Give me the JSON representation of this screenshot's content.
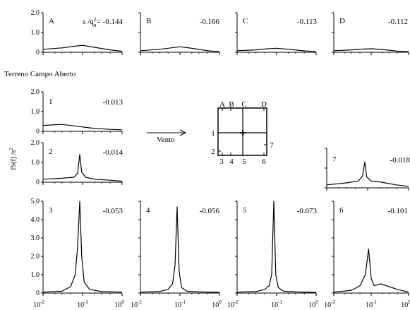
{
  "figure": {
    "section_label": "Terreno Campo Aberto",
    "wind_label": "Vento",
    "ylabel": "fS(f) /s",
    "ylabel_sup": "2",
    "coef_prefix": "s /q",
    "coef_sup": "2",
    "coef_sub": "H",
    "coef_eq": "= ",
    "xtick_base": "10",
    "xticks": [
      "-2",
      "-1",
      "0"
    ],
    "key": {
      "top_labels": [
        "A",
        "B",
        "C",
        "D"
      ],
      "bottom_labels": [
        "3",
        "4",
        "5",
        "6"
      ],
      "left_labels": [
        "1",
        "2"
      ],
      "right_labels": [
        "7"
      ]
    }
  },
  "chart_data": [
    {
      "type": "line",
      "label": "A",
      "value": "-0.144",
      "ylim": [
        0,
        2.0
      ],
      "yticks": [
        "0",
        "1.0",
        "2.0"
      ],
      "x": [
        0.01,
        0.03,
        0.06,
        0.1,
        0.2,
        0.5,
        1.0
      ],
      "y": [
        0.15,
        0.22,
        0.3,
        0.35,
        0.25,
        0.12,
        0.05
      ]
    },
    {
      "type": "line",
      "label": "B",
      "value": "-0.166",
      "ylim": [
        0,
        2.0
      ],
      "x": [
        0.01,
        0.03,
        0.06,
        0.1,
        0.2,
        0.5,
        1.0
      ],
      "y": [
        0.08,
        0.15,
        0.22,
        0.28,
        0.2,
        0.08,
        0.03
      ]
    },
    {
      "type": "line",
      "label": "C",
      "value": "-0.113",
      "ylim": [
        0,
        2.0
      ],
      "x": [
        0.01,
        0.03,
        0.06,
        0.1,
        0.2,
        0.5,
        1.0
      ],
      "y": [
        0.08,
        0.12,
        0.18,
        0.2,
        0.15,
        0.07,
        0.03
      ]
    },
    {
      "type": "line",
      "label": "D",
      "value": "-0.112",
      "ylim": [
        0,
        2.0
      ],
      "x": [
        0.01,
        0.03,
        0.06,
        0.1,
        0.2,
        0.5,
        1.0
      ],
      "y": [
        0.08,
        0.12,
        0.16,
        0.18,
        0.14,
        0.06,
        0.03
      ]
    },
    {
      "type": "line",
      "label": "1",
      "value": "-0.013",
      "ylim": [
        0,
        2.0
      ],
      "yticks": [
        "0",
        "1.0",
        "2.0"
      ],
      "x": [
        0.01,
        0.03,
        0.06,
        0.1,
        0.2,
        0.5,
        1.0
      ],
      "y": [
        0.3,
        0.35,
        0.28,
        0.22,
        0.15,
        0.1,
        0.08
      ]
    },
    {
      "type": "line",
      "label": "2",
      "value": "-0.014",
      "ylim": [
        0,
        2.0
      ],
      "yticks": [
        "0",
        "1.0",
        "2.0"
      ],
      "x": [
        0.01,
        0.03,
        0.06,
        0.075,
        0.085,
        0.095,
        0.12,
        0.2,
        0.5,
        1.0
      ],
      "y": [
        0.15,
        0.2,
        0.25,
        0.45,
        1.4,
        0.5,
        0.25,
        0.15,
        0.1,
        0.05
      ]
    },
    {
      "type": "line",
      "label": "7",
      "value": "-0.018",
      "ylim": [
        0,
        2.0
      ],
      "x": [
        0.01,
        0.03,
        0.06,
        0.075,
        0.085,
        0.095,
        0.12,
        0.2,
        0.5,
        1.0
      ],
      "y": [
        0.15,
        0.25,
        0.35,
        0.6,
        1.3,
        0.55,
        0.35,
        0.3,
        0.15,
        0.08
      ]
    },
    {
      "type": "line",
      "label": "3",
      "value": "-0.053",
      "ylim": [
        0,
        5.0
      ],
      "yticks": [
        "0",
        "1.0",
        "2.0",
        "3.0",
        "4.0",
        "5.0"
      ],
      "x": [
        0.01,
        0.03,
        0.05,
        0.065,
        0.075,
        0.085,
        0.095,
        0.11,
        0.15,
        0.3,
        1.0
      ],
      "y": [
        0.05,
        0.1,
        0.35,
        1.0,
        2.5,
        5.0,
        2.0,
        0.6,
        0.2,
        0.08,
        0.05
      ]
    },
    {
      "type": "line",
      "label": "4",
      "value": "-0.056",
      "ylim": [
        0,
        5.0
      ],
      "x": [
        0.01,
        0.03,
        0.05,
        0.065,
        0.075,
        0.085,
        0.095,
        0.11,
        0.15,
        0.3,
        1.0
      ],
      "y": [
        0.05,
        0.08,
        0.2,
        0.5,
        1.5,
        4.7,
        1.2,
        0.3,
        0.1,
        0.06,
        0.04
      ]
    },
    {
      "type": "line",
      "label": "5",
      "value": "-0.073",
      "ylim": [
        0,
        5.0
      ],
      "x": [
        0.01,
        0.03,
        0.05,
        0.065,
        0.075,
        0.085,
        0.095,
        0.11,
        0.15,
        0.3,
        1.0
      ],
      "y": [
        0.05,
        0.08,
        0.2,
        0.4,
        1.0,
        5.0,
        1.0,
        0.3,
        0.1,
        0.06,
        0.04
      ]
    },
    {
      "type": "line",
      "label": "6",
      "value": "-0.101",
      "ylim": [
        0,
        5.0
      ],
      "x": [
        0.01,
        0.03,
        0.05,
        0.07,
        0.085,
        0.1,
        0.12,
        0.18,
        0.3,
        0.5,
        1.0
      ],
      "y": [
        0.05,
        0.15,
        0.4,
        1.0,
        2.4,
        0.8,
        0.4,
        0.5,
        0.35,
        0.2,
        0.05
      ]
    }
  ]
}
